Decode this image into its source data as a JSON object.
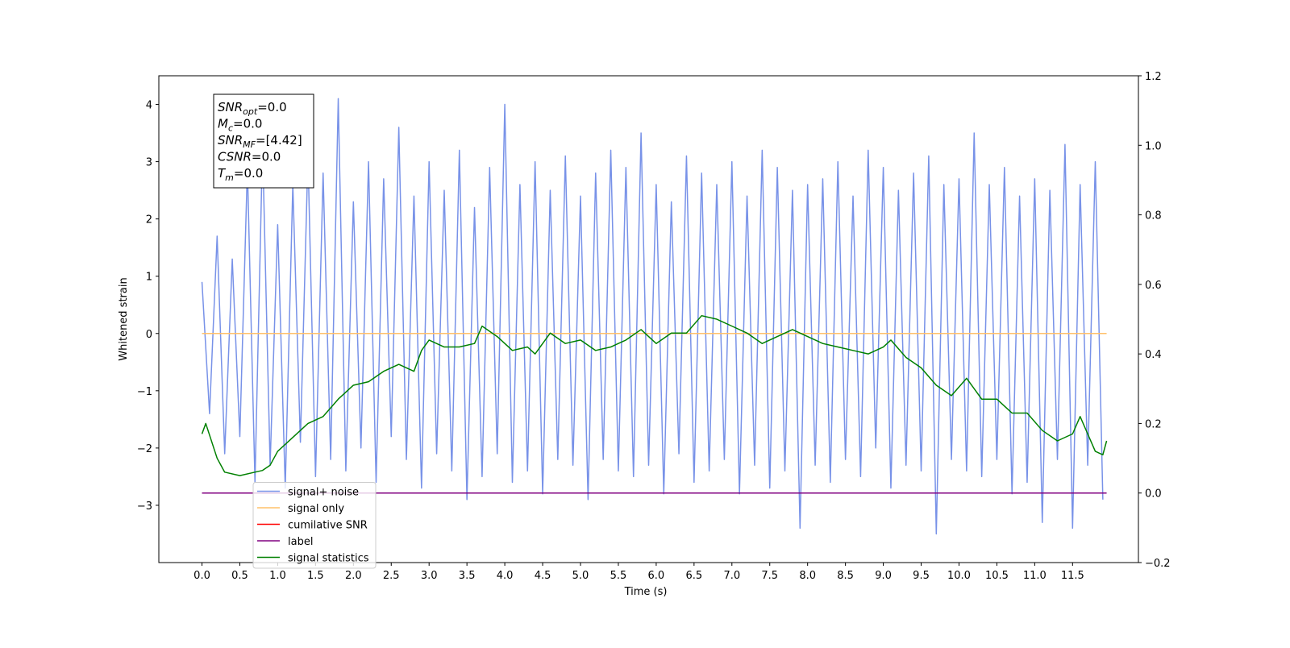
{
  "chart_data": {
    "type": "line",
    "xlabel": "Time (s)",
    "ylabel": "Whitened strain",
    "xlim": [
      -0.57,
      12.37
    ],
    "ylim": [
      -4.0,
      4.5
    ],
    "y2lim": [
      -0.2,
      1.2
    ],
    "xticks": [
      {
        "value": 0,
        "label": "0.0"
      },
      0.5,
      {
        "value": 1,
        "label": "1.0"
      },
      1.5,
      {
        "value": 2,
        "label": "2.0"
      },
      2.5,
      {
        "value": 3,
        "label": "3.0"
      },
      3.5,
      {
        "value": 4,
        "label": "4.0"
      },
      4.5,
      {
        "value": 5,
        "label": "5.0"
      },
      5.5,
      {
        "value": 6,
        "label": "6.0"
      },
      6.5,
      {
        "value": 7,
        "label": "7.0"
      },
      7.5,
      {
        "value": 8,
        "label": "8.0"
      },
      8.5,
      {
        "value": 9,
        "label": "9.0"
      },
      9.5,
      {
        "value": 10,
        "label": "10.0"
      },
      10.5,
      {
        "value": 11,
        "label": "11.0"
      },
      11.5
    ],
    "yticks": [
      {
        "value": -3,
        "label": "−3"
      },
      {
        "value": -2,
        "label": "−2"
      },
      {
        "value": -1,
        "label": "−1"
      },
      0,
      1,
      2,
      3,
      4
    ],
    "y2ticks": [
      {
        "value": -0.2,
        "label": "−0.2"
      },
      {
        "value": 0,
        "label": "0.0"
      },
      0.2,
      0.4,
      0.6,
      0.8,
      {
        "value": 1,
        "label": "1.0"
      },
      1.2
    ],
    "grid": false,
    "legend_loc": "lower left",
    "annotation": [
      {
        "name": "SNR",
        "sub": "opt",
        "text": "=0.0"
      },
      {
        "name": "M",
        "sub": "c",
        "text": "=0.0"
      },
      {
        "name": "SNR",
        "sub": "MF",
        "text": "=[4.42]"
      },
      {
        "name": "CSNR",
        "sub": "",
        "text": "=0.0"
      },
      {
        "name": "T",
        "sub": "m",
        "text": "=0.0"
      }
    ],
    "series": [
      {
        "name": "signal+ noise",
        "color": "#7892e8",
        "axis": "y",
        "x": [
          0.0,
          0.1,
          0.2,
          0.3,
          0.4,
          0.5,
          0.6,
          0.7,
          0.8,
          0.9,
          1.0,
          1.1,
          1.2,
          1.3,
          1.4,
          1.5,
          1.6,
          1.7,
          1.8,
          1.9,
          2.0,
          2.1,
          2.2,
          2.3,
          2.4,
          2.5,
          2.6,
          2.7,
          2.8,
          2.9,
          3.0,
          3.1,
          3.2,
          3.3,
          3.4,
          3.5,
          3.6,
          3.7,
          3.8,
          3.9,
          4.0,
          4.1,
          4.2,
          4.3,
          4.4,
          4.5,
          4.6,
          4.7,
          4.8,
          4.9,
          5.0,
          5.1,
          5.2,
          5.3,
          5.4,
          5.5,
          5.6,
          5.7,
          5.8,
          5.9,
          6.0,
          6.1,
          6.2,
          6.3,
          6.4,
          6.5,
          6.6,
          6.7,
          6.8,
          6.9,
          7.0,
          7.1,
          7.2,
          7.3,
          7.4,
          7.5,
          7.6,
          7.7,
          7.8,
          7.9,
          8.0,
          8.1,
          8.2,
          8.3,
          8.4,
          8.5,
          8.6,
          8.7,
          8.8,
          8.9,
          9.0,
          9.1,
          9.2,
          9.3,
          9.4,
          9.5,
          9.6,
          9.7,
          9.8,
          9.9,
          10.0,
          10.1,
          10.2,
          10.3,
          10.4,
          10.5,
          10.6,
          10.7,
          10.8,
          10.9,
          11.0,
          11.1,
          11.2,
          11.3,
          11.4,
          11.5,
          11.6,
          11.7,
          11.8,
          11.9
        ],
        "values": [
          0.9,
          -1.4,
          1.7,
          -2.1,
          1.3,
          -1.8,
          2.9,
          -2.6,
          3.3,
          -2.3,
          1.9,
          -2.7,
          2.6,
          -1.9,
          3.1,
          -2.5,
          2.8,
          -2.2,
          4.1,
          -2.4,
          2.3,
          -2.0,
          3.0,
          -2.6,
          2.7,
          -1.8,
          3.6,
          -2.2,
          2.4,
          -2.7,
          3.0,
          -2.1,
          2.5,
          -2.4,
          3.2,
          -2.9,
          2.2,
          -2.5,
          2.9,
          -2.1,
          4.0,
          -2.6,
          2.6,
          -2.4,
          3.0,
          -2.8,
          2.5,
          -2.2,
          3.1,
          -2.3,
          2.4,
          -2.9,
          2.8,
          -2.2,
          3.2,
          -2.4,
          2.9,
          -2.5,
          3.5,
          -2.3,
          2.6,
          -2.8,
          2.3,
          -2.1,
          3.1,
          -2.6,
          2.8,
          -2.4,
          2.6,
          -2.2,
          3.0,
          -2.8,
          2.4,
          -2.3,
          3.2,
          -2.7,
          2.9,
          -2.4,
          2.5,
          -3.4,
          2.6,
          -2.3,
          2.7,
          -2.6,
          3.0,
          -2.2,
          2.4,
          -2.5,
          3.2,
          -2.0,
          2.9,
          -2.7,
          2.5,
          -2.3,
          2.8,
          -2.4,
          3.1,
          -3.5,
          2.6,
          -2.2,
          2.7,
          -2.4,
          3.5,
          -2.5,
          2.6,
          -2.2,
          2.9,
          -2.8,
          2.4,
          -2.6,
          2.7,
          -3.3,
          2.5,
          -2.2,
          3.3,
          -3.4,
          2.6,
          -2.3,
          3.0,
          -2.9
        ]
      },
      {
        "name": "signal only",
        "color": "#ffc06a",
        "axis": "y",
        "x": [
          0,
          11.95
        ],
        "values": [
          0,
          0
        ]
      },
      {
        "name": "cumilative SNR",
        "color": "#ff0000",
        "axis": "y2",
        "x": [],
        "values": []
      },
      {
        "name": "label",
        "color": "#800080",
        "axis": "y2",
        "x": [
          0,
          11.95
        ],
        "values": [
          0,
          0
        ]
      },
      {
        "name": "signal statistics",
        "color": "#008000",
        "axis": "y2",
        "x": [
          0,
          0.05,
          0.2,
          0.3,
          0.5,
          0.7,
          0.8,
          0.9,
          1.0,
          1.2,
          1.4,
          1.6,
          1.8,
          2.0,
          2.2,
          2.4,
          2.6,
          2.8,
          2.9,
          3.0,
          3.2,
          3.4,
          3.6,
          3.7,
          3.9,
          4.1,
          4.3,
          4.4,
          4.6,
          4.8,
          5.0,
          5.2,
          5.4,
          5.6,
          5.8,
          6.0,
          6.2,
          6.4,
          6.6,
          6.8,
          7.0,
          7.2,
          7.4,
          7.6,
          7.8,
          8.0,
          8.2,
          8.4,
          8.6,
          8.8,
          9.0,
          9.1,
          9.3,
          9.5,
          9.7,
          9.9,
          10.1,
          10.3,
          10.5,
          10.7,
          10.9,
          11.1,
          11.3,
          11.5,
          11.6,
          11.7,
          11.8,
          11.9,
          11.95
        ],
        "values": [
          0.17,
          0.2,
          0.1,
          0.06,
          0.05,
          0.06,
          0.065,
          0.08,
          0.12,
          0.16,
          0.2,
          0.22,
          0.27,
          0.31,
          0.32,
          0.35,
          0.37,
          0.35,
          0.41,
          0.44,
          0.42,
          0.42,
          0.43,
          0.48,
          0.45,
          0.41,
          0.42,
          0.4,
          0.46,
          0.43,
          0.44,
          0.41,
          0.42,
          0.44,
          0.47,
          0.43,
          0.46,
          0.46,
          0.51,
          0.5,
          0.48,
          0.46,
          0.43,
          0.45,
          0.47,
          0.45,
          0.43,
          0.42,
          0.41,
          0.4,
          0.42,
          0.44,
          0.39,
          0.36,
          0.31,
          0.28,
          0.33,
          0.27,
          0.27,
          0.23,
          0.23,
          0.18,
          0.15,
          0.17,
          0.22,
          0.17,
          0.12,
          0.11,
          0.15
        ]
      }
    ]
  }
}
